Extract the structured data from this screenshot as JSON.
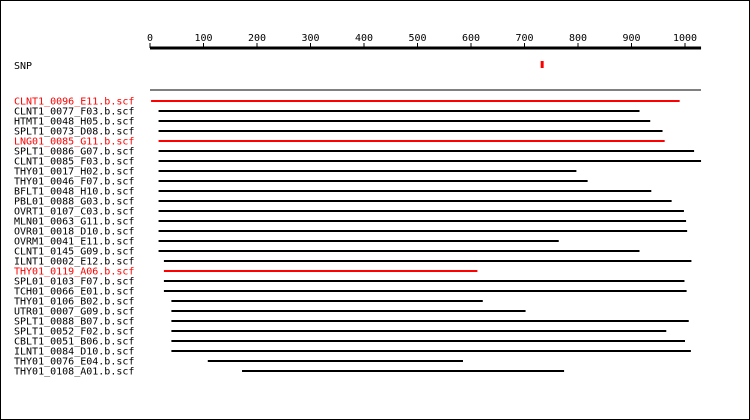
{
  "colors": {
    "highlight": "#ff0000",
    "normal": "#000000",
    "background": "#ffffff"
  },
  "axis": {
    "min": 0,
    "max": 1030,
    "ticks": [
      0,
      100,
      200,
      300,
      400,
      500,
      600,
      700,
      800,
      900,
      1000
    ]
  },
  "snp": {
    "label": "SNP",
    "position": 733
  },
  "reads": [
    {
      "name": "CLNT1_0096_E11.b.scf",
      "start": 2,
      "end": 990,
      "highlight": true
    },
    {
      "name": "CLNT1_0077_F03.b.scf",
      "start": 16,
      "end": 915,
      "highlight": false
    },
    {
      "name": "HTMT1_0048_H05.b.scf",
      "start": 16,
      "end": 935,
      "highlight": false
    },
    {
      "name": "SPLT1_0073_D08.b.scf",
      "start": 16,
      "end": 958,
      "highlight": false
    },
    {
      "name": "LNG01_0085_G11.b.scf",
      "start": 16,
      "end": 962,
      "highlight": true
    },
    {
      "name": "SPLT1_0086_G07.b.scf",
      "start": 16,
      "end": 1017,
      "highlight": false
    },
    {
      "name": "CLNT1_0085_F03.b.scf",
      "start": 16,
      "end": 1030,
      "highlight": false
    },
    {
      "name": "THY01_0017_H02.b.scf",
      "start": 16,
      "end": 797,
      "highlight": false
    },
    {
      "name": "THY01_0046_F07.b.scf",
      "start": 16,
      "end": 818,
      "highlight": false
    },
    {
      "name": "BFLT1_0048_H10.b.scf",
      "start": 16,
      "end": 937,
      "highlight": false
    },
    {
      "name": "PBL01_0088_G03.b.scf",
      "start": 16,
      "end": 975,
      "highlight": false
    },
    {
      "name": "OVRT1_0107_C03.b.scf",
      "start": 16,
      "end": 998,
      "highlight": false
    },
    {
      "name": "MLN01_0063_G11.b.scf",
      "start": 16,
      "end": 1002,
      "highlight": false
    },
    {
      "name": "OVR01_0018_D10.b.scf",
      "start": 16,
      "end": 1004,
      "highlight": false
    },
    {
      "name": "OVRM1_0041_E11.b.scf",
      "start": 16,
      "end": 764,
      "highlight": false
    },
    {
      "name": "CLNT1_0145_G09.b.scf",
      "start": 16,
      "end": 915,
      "highlight": false
    },
    {
      "name": "ILNT1_0002_E12.b.scf",
      "start": 26,
      "end": 1012,
      "highlight": false
    },
    {
      "name": "THY01_0119_A06.b.scf",
      "start": 26,
      "end": 612,
      "highlight": true
    },
    {
      "name": "SPL01_0103_F07.b.scf",
      "start": 26,
      "end": 999,
      "highlight": false
    },
    {
      "name": "TCH01_0066_E01.b.scf",
      "start": 26,
      "end": 1003,
      "highlight": false
    },
    {
      "name": "THY01_0106_B02.b.scf",
      "start": 40,
      "end": 622,
      "highlight": false
    },
    {
      "name": "UTR01_0007_G09.b.scf",
      "start": 40,
      "end": 702,
      "highlight": false
    },
    {
      "name": "SPLT1_0088_B07.b.scf",
      "start": 40,
      "end": 1007,
      "highlight": false
    },
    {
      "name": "SPLT1_0052_F02.b.scf",
      "start": 40,
      "end": 965,
      "highlight": false
    },
    {
      "name": "CBLT1_0051_B06.b.scf",
      "start": 40,
      "end": 1000,
      "highlight": false
    },
    {
      "name": "ILNT1_0084_D10.b.scf",
      "start": 40,
      "end": 1011,
      "highlight": false
    },
    {
      "name": "THY01_0076_E04.b.scf",
      "start": 108,
      "end": 585,
      "highlight": false
    },
    {
      "name": "THY01_0108_A01.b.scf",
      "start": 172,
      "end": 774,
      "highlight": false
    }
  ]
}
